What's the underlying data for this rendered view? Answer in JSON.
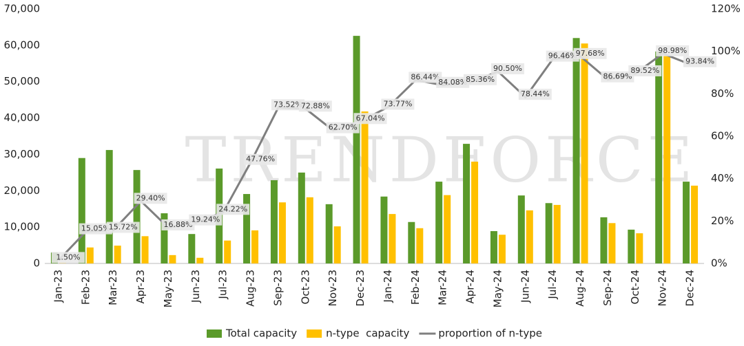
{
  "chart_data": {
    "type": "bar",
    "watermark": "TRENDFORCE",
    "categories": [
      "Jan-23",
      "Feb-23",
      "Mar-23",
      "Apr-23",
      "May-23",
      "Jun-23",
      "Jul-23",
      "Aug-23",
      "Sep-23",
      "Oct-23",
      "Nov-23",
      "Dec-23",
      "Jan-24",
      "Feb-24",
      "Mar-24",
      "Apr-24",
      "May-24",
      "Jun-24",
      "Jul-24",
      "Aug-24",
      "Sep-24",
      "Oct-24",
      "Nov-24",
      "Dec-24"
    ],
    "series": [
      {
        "name": "Total capacity",
        "type": "bar",
        "color": "#5b9a2a",
        "values": [
          3000,
          29000,
          31200,
          25700,
          13800,
          8100,
          26100,
          19100,
          22900,
          25000,
          16300,
          62600,
          18400,
          11400,
          22500,
          32900,
          8900,
          18700,
          16600,
          62000,
          12700,
          9300,
          58300,
          22500
        ]
      },
      {
        "name": "n-type  capacity",
        "type": "bar",
        "color": "#ffc000",
        "values": [
          45,
          4400,
          4900,
          7500,
          2300,
          1560,
          6300,
          9100,
          16800,
          18200,
          10200,
          41800,
          13600,
          9700,
          18800,
          28000,
          7900,
          14600,
          16100,
          60500,
          11100,
          8300,
          57300,
          21400
        ]
      },
      {
        "name": "proportion of n-type",
        "type": "line",
        "axis": "y2",
        "color": "#7f7f7f",
        "values": [
          1.5,
          15.05,
          15.72,
          29.4,
          16.88,
          19.24,
          24.22,
          47.76,
          73.52,
          72.88,
          62.7,
          67.04,
          73.77,
          86.44,
          84.08,
          85.36,
          90.5,
          78.44,
          96.46,
          97.68,
          86.69,
          89.52,
          98.98,
          93.84
        ],
        "value_labels": [
          "1.50%",
          "15.05%",
          "15.72%",
          "29.40%",
          "16.88%",
          "19.24%",
          "24.22%",
          "47.76%",
          "73.52%",
          "72.88%",
          "62.70%",
          "67.04%",
          "73.77%",
          "86.44%",
          "84.08%",
          "85.36%",
          "90.50%",
          "78.44%",
          "96.46%",
          "97.68%",
          "86.69%",
          "89.52%",
          "98.98%",
          "93.84%"
        ]
      }
    ],
    "ylim": [
      0,
      70000
    ],
    "yticks": [
      0,
      {
        "value": 10000,
        "label": "10,000"
      },
      {
        "value": 20000,
        "label": "20,000"
      },
      {
        "value": 30000,
        "label": "30,000"
      },
      {
        "value": 40000,
        "label": "40,000"
      },
      {
        "value": 50000,
        "label": "50,000"
      },
      {
        "value": 60000,
        "label": "60,000"
      },
      {
        "value": 70000,
        "label": "70,000"
      }
    ],
    "y2lim": [
      0,
      120
    ],
    "y2ticks": [
      {
        "value": 0,
        "label": "0%"
      },
      {
        "value": 20,
        "label": "20%"
      },
      {
        "value": 40,
        "label": "40%"
      },
      {
        "value": 60,
        "label": "60%"
      },
      {
        "value": 80,
        "label": "80%"
      },
      {
        "value": 100,
        "label": "100%"
      },
      {
        "value": 120,
        "label": "120%"
      }
    ],
    "grid": false,
    "legend": "bottom"
  }
}
